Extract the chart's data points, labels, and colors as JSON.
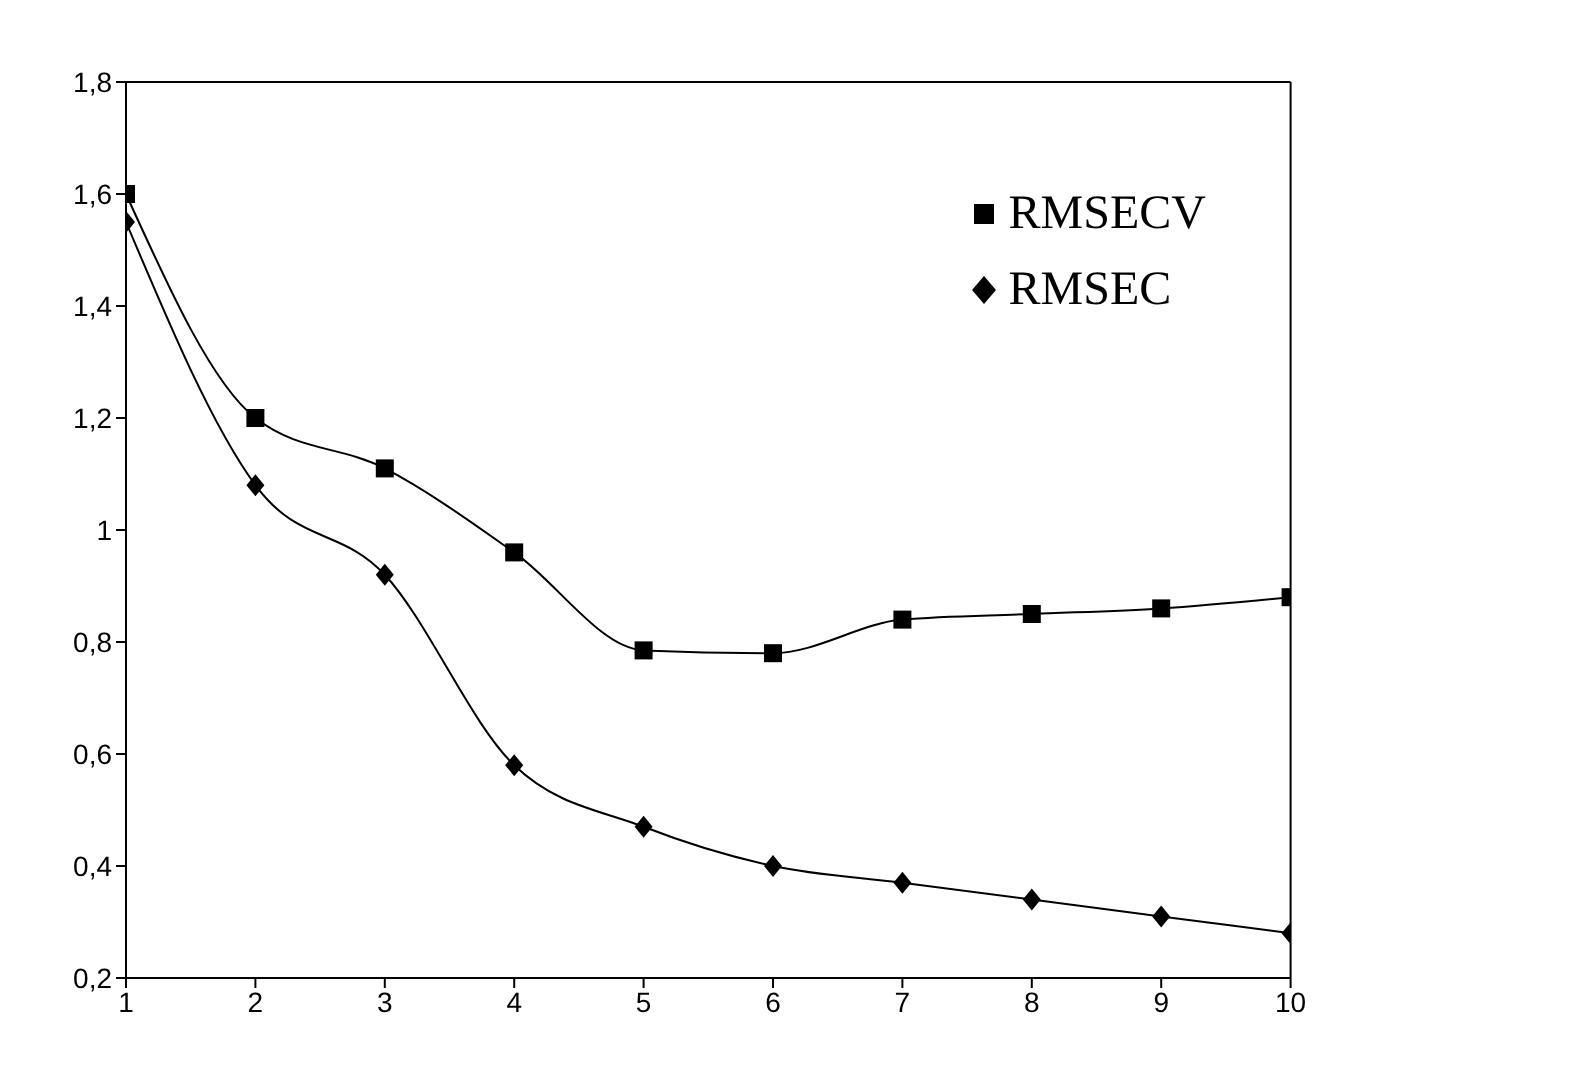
{
  "chart_data": {
    "type": "line",
    "x": [
      1,
      2,
      3,
      4,
      5,
      6,
      7,
      8,
      9,
      10
    ],
    "series": [
      {
        "name": "RMSECV",
        "color": "#000000",
        "marker": "square",
        "values": [
          1.6,
          1.2,
          1.11,
          0.96,
          0.785,
          0.78,
          0.84,
          0.85,
          0.86,
          0.88
        ]
      },
      {
        "name": "RMSEC",
        "color": "#000000",
        "marker": "diamond",
        "values": [
          1.55,
          1.08,
          0.92,
          0.58,
          0.47,
          0.4,
          0.37,
          0.34,
          0.31,
          0.28
        ]
      }
    ],
    "xlim": [
      1,
      10
    ],
    "xticks": [
      1,
      2,
      3,
      4,
      5,
      6,
      7,
      8,
      9,
      10
    ],
    "ylim": [
      0.2,
      1.8
    ],
    "yticks": [
      {
        "value": 0.2,
        "label": "0,2"
      },
      {
        "value": 0.4,
        "label": "0,4"
      },
      {
        "value": 0.6,
        "label": "0,6"
      },
      {
        "value": 0.8,
        "label": "0,8"
      },
      1,
      {
        "value": 1.2,
        "label": "1,2"
      },
      {
        "value": 1.4,
        "label": "1,4"
      },
      {
        "value": 1.6,
        "label": "1,6"
      },
      {
        "value": 1.8,
        "label": "1,8"
      }
    ],
    "grid": false,
    "legend": "top right",
    "line_style": "solid"
  }
}
